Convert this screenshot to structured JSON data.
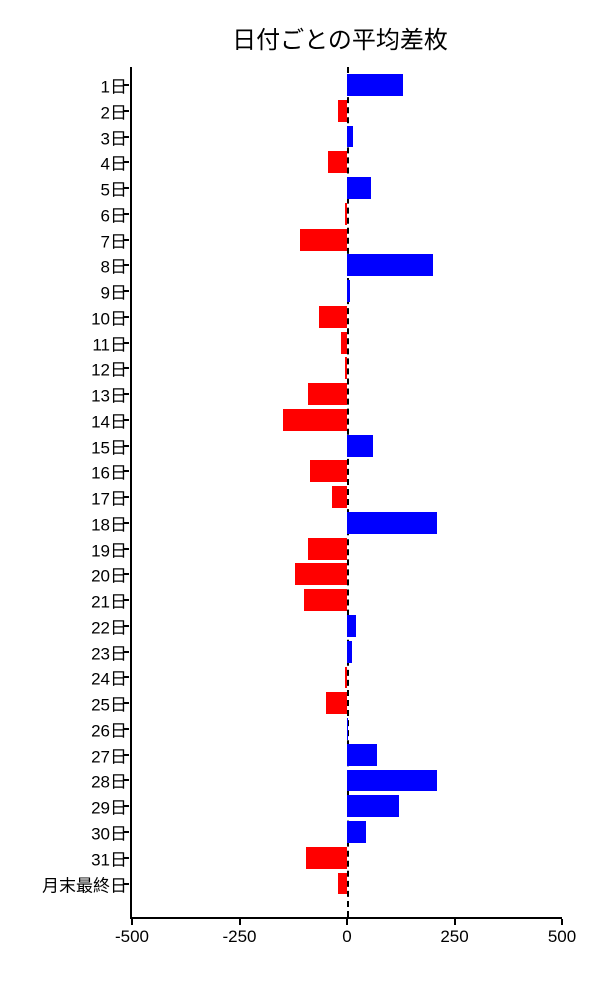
{
  "chart": {
    "type": "bar-horizontal-diverging",
    "title": "日付ごとの平均差枚",
    "title_fontsize": 24,
    "background_color": "#ffffff",
    "positive_color": "#0000ff",
    "negative_color": "#ff0000",
    "axis_color": "#000000",
    "zero_line_color": "#000000",
    "zero_line_dash": true,
    "label_fontsize": 17,
    "xlim": [
      -500,
      500
    ],
    "xticks": [
      -500,
      -250,
      0,
      250,
      500
    ],
    "bar_height_ratio": 0.85,
    "categories": [
      "1日",
      "2日",
      "3日",
      "4日",
      "5日",
      "6日",
      "7日",
      "8日",
      "9日",
      "10日",
      "11日",
      "12日",
      "13日",
      "14日",
      "15日",
      "16日",
      "17日",
      "18日",
      "19日",
      "20日",
      "21日",
      "22日",
      "23日",
      "24日",
      "25日",
      "26日",
      "27日",
      "28日",
      "29日",
      "30日",
      "31日",
      "月末最終日"
    ],
    "values": [
      130,
      -20,
      15,
      -45,
      55,
      -5,
      -110,
      200,
      8,
      -65,
      -15,
      -5,
      -90,
      -150,
      60,
      -85,
      -35,
      210,
      -90,
      -120,
      -100,
      20,
      12,
      -5,
      -50,
      3,
      70,
      210,
      120,
      45,
      -95,
      -20
    ]
  }
}
